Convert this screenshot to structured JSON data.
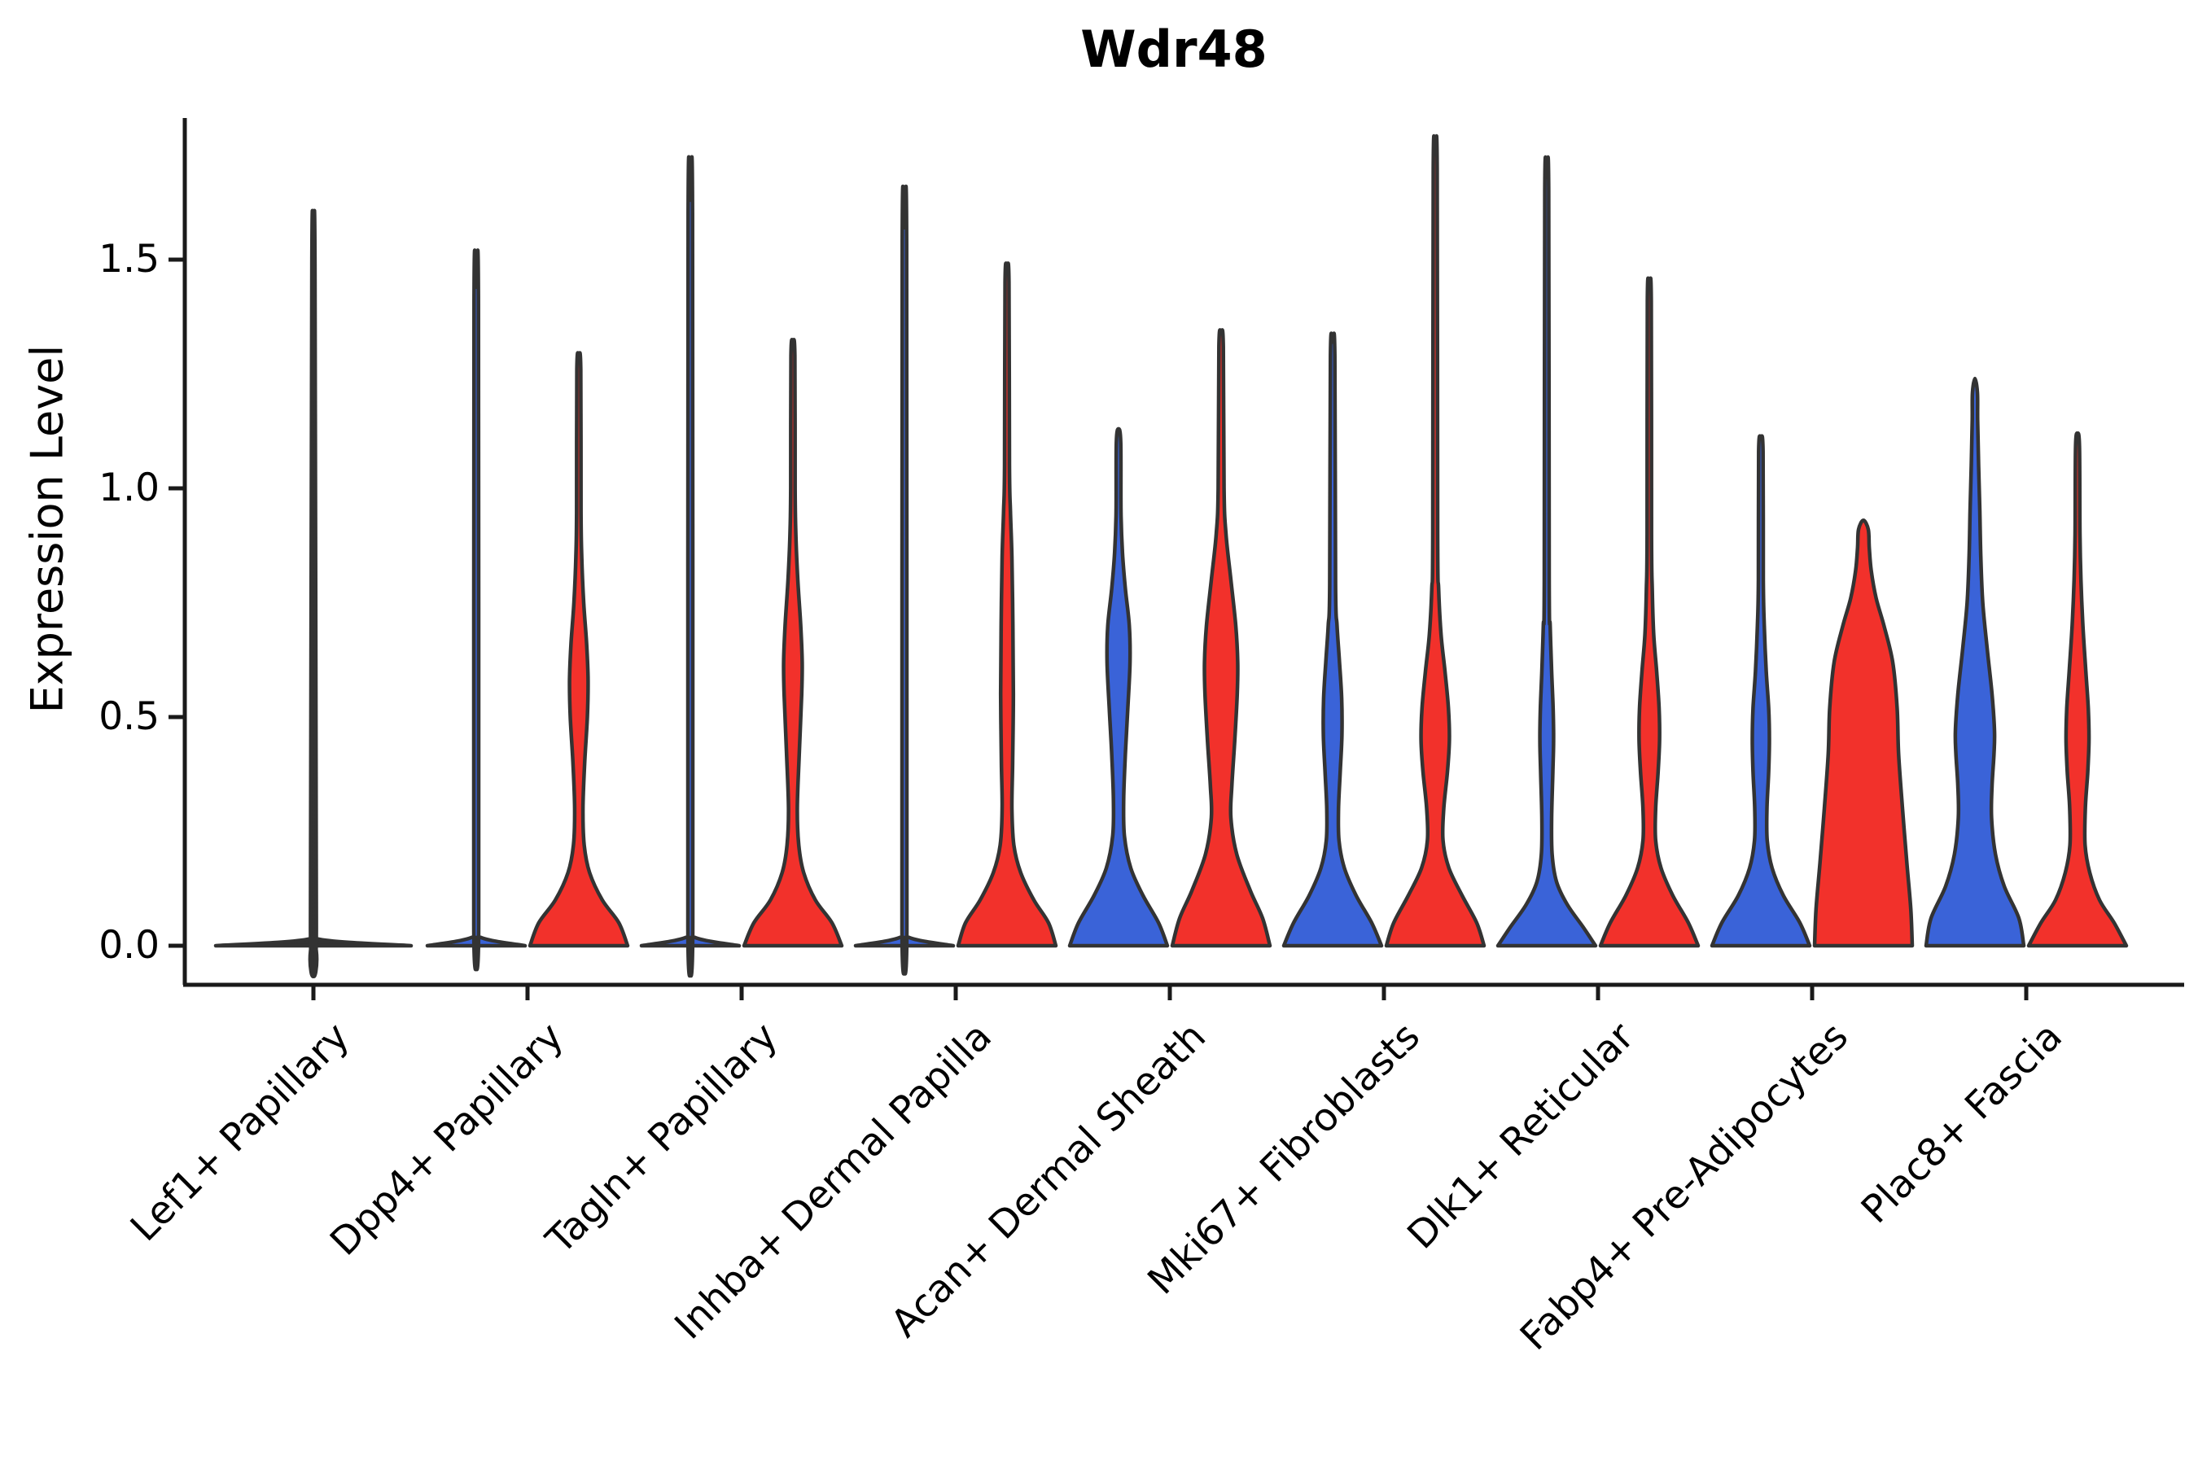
{
  "title": "Wdr48",
  "axes": {
    "y_label": "Expression Level",
    "y_tick_labels": [
      "0.0",
      "0.5",
      "1.0",
      "1.5"
    ]
  },
  "chart_data": {
    "type": "violin",
    "title": "Wdr48",
    "xlabel": "",
    "ylabel": "Expression Level",
    "ylim": [
      -0.05,
      1.81
    ],
    "yticks": [
      0.0,
      0.5,
      1.0,
      1.5
    ],
    "grid": false,
    "legend": "none",
    "colors": {
      "blue": "#3A63D8",
      "red": "#F2312B",
      "outline": "#333333"
    },
    "groups": [
      "group-blue",
      "group-red"
    ],
    "categories": [
      "Lef1+ Papillary",
      "Dpp4+ Papillary",
      "Tagln+ Papillary",
      "Inhba+ Dermal Papilla",
      "Acan+ Dermal Sheath",
      "Mki67+ Fibroblasts",
      "Dlk1+ Reticular",
      "Fabp4+ Pre-Adipocytes",
      "Plac8+ Fascia"
    ],
    "violins": [
      {
        "category": "Lef1+ Papillary",
        "group": "single",
        "color_key": "outline",
        "span": "full",
        "max_expression": 1.52,
        "profile": [
          [
            0,
            1
          ],
          [
            0.015,
            0.04
          ],
          [
            0.05,
            0.03
          ],
          [
            1.49,
            0.016
          ],
          [
            1.52,
            0
          ]
        ]
      },
      {
        "category": "Dpp4+ Papillary",
        "group": "group-blue",
        "color_key": "blue",
        "span": "half",
        "max_expression": 1.44,
        "profile": [
          [
            0,
            1
          ],
          [
            0.02,
            0.06
          ],
          [
            0.06,
            0.05
          ],
          [
            1.41,
            0.045
          ],
          [
            1.44,
            0
          ]
        ]
      },
      {
        "category": "Dpp4+ Papillary",
        "group": "group-red",
        "color_key": "red",
        "span": "half",
        "max_expression": 1.29,
        "profile": [
          [
            0,
            1
          ],
          [
            0.05,
            0.82
          ],
          [
            0.1,
            0.48
          ],
          [
            0.16,
            0.22
          ],
          [
            0.22,
            0.11
          ],
          [
            0.3,
            0.085
          ],
          [
            0.4,
            0.12
          ],
          [
            0.5,
            0.175
          ],
          [
            0.58,
            0.19
          ],
          [
            0.66,
            0.16
          ],
          [
            0.75,
            0.1
          ],
          [
            0.85,
            0.06
          ],
          [
            0.95,
            0.045
          ],
          [
            1.26,
            0.04
          ],
          [
            1.29,
            0
          ]
        ]
      },
      {
        "category": "Tagln+ Papillary",
        "group": "group-blue",
        "color_key": "blue",
        "span": "half",
        "max_expression": 1.63,
        "profile": [
          [
            0,
            1
          ],
          [
            0.02,
            0.06
          ],
          [
            0.06,
            0.05
          ],
          [
            1.6,
            0.045
          ],
          [
            1.63,
            0
          ]
        ]
      },
      {
        "category": "Tagln+ Papillary",
        "group": "group-red",
        "color_key": "red",
        "span": "half",
        "max_expression": 1.32,
        "profile": [
          [
            0,
            1
          ],
          [
            0.05,
            0.8
          ],
          [
            0.1,
            0.46
          ],
          [
            0.16,
            0.22
          ],
          [
            0.22,
            0.12
          ],
          [
            0.3,
            0.09
          ],
          [
            0.42,
            0.13
          ],
          [
            0.55,
            0.18
          ],
          [
            0.62,
            0.19
          ],
          [
            0.7,
            0.16
          ],
          [
            0.8,
            0.1
          ],
          [
            0.9,
            0.06
          ],
          [
            1.0,
            0.045
          ],
          [
            1.29,
            0.04
          ],
          [
            1.32,
            0
          ]
        ]
      },
      {
        "category": "Inhba+ Dermal Papilla",
        "group": "group-blue",
        "color_key": "blue",
        "span": "half",
        "max_expression": 1.57,
        "profile": [
          [
            0,
            1
          ],
          [
            0.02,
            0.06
          ],
          [
            0.06,
            0.05
          ],
          [
            1.54,
            0.045
          ],
          [
            1.57,
            0
          ]
        ]
      },
      {
        "category": "Inhba+ Dermal Papilla",
        "group": "group-red",
        "color_key": "red",
        "span": "half",
        "max_expression": 1.48,
        "profile": [
          [
            0,
            1
          ],
          [
            0.05,
            0.85
          ],
          [
            0.1,
            0.55
          ],
          [
            0.16,
            0.28
          ],
          [
            0.22,
            0.14
          ],
          [
            0.3,
            0.1
          ],
          [
            0.4,
            0.115
          ],
          [
            0.55,
            0.13
          ],
          [
            0.7,
            0.12
          ],
          [
            0.85,
            0.1
          ],
          [
            0.95,
            0.07
          ],
          [
            1.05,
            0.05
          ],
          [
            1.45,
            0.04
          ],
          [
            1.48,
            0
          ]
        ]
      },
      {
        "category": "Acan+ Dermal Sheath",
        "group": "group-blue",
        "color_key": "blue",
        "span": "half",
        "max_expression": 1.13,
        "profile": [
          [
            0,
            1
          ],
          [
            0.05,
            0.82
          ],
          [
            0.11,
            0.5
          ],
          [
            0.17,
            0.25
          ],
          [
            0.24,
            0.12
          ],
          [
            0.32,
            0.105
          ],
          [
            0.42,
            0.14
          ],
          [
            0.52,
            0.19
          ],
          [
            0.62,
            0.235
          ],
          [
            0.7,
            0.22
          ],
          [
            0.78,
            0.14
          ],
          [
            0.86,
            0.08
          ],
          [
            0.95,
            0.05
          ],
          [
            1.1,
            0.045
          ],
          [
            1.13,
            0
          ]
        ]
      },
      {
        "category": "Acan+ Dermal Sheath",
        "group": "group-red",
        "color_key": "red",
        "span": "half",
        "max_expression": 1.34,
        "profile": [
          [
            0,
            1
          ],
          [
            0.06,
            0.85
          ],
          [
            0.12,
            0.6
          ],
          [
            0.2,
            0.32
          ],
          [
            0.28,
            0.2
          ],
          [
            0.35,
            0.22
          ],
          [
            0.45,
            0.28
          ],
          [
            0.55,
            0.33
          ],
          [
            0.62,
            0.34
          ],
          [
            0.7,
            0.3
          ],
          [
            0.8,
            0.2
          ],
          [
            0.9,
            0.1
          ],
          [
            1.0,
            0.06
          ],
          [
            1.31,
            0.045
          ],
          [
            1.34,
            0
          ]
        ]
      },
      {
        "category": "Mki67+ Fibroblasts",
        "group": "group-blue",
        "color_key": "blue",
        "span": "half",
        "max_expression": 1.32,
        "profile": [
          [
            0,
            1
          ],
          [
            0.05,
            0.8
          ],
          [
            0.11,
            0.48
          ],
          [
            0.17,
            0.24
          ],
          [
            0.23,
            0.13
          ],
          [
            0.3,
            0.12
          ],
          [
            0.38,
            0.155
          ],
          [
            0.46,
            0.19
          ],
          [
            0.54,
            0.185
          ],
          [
            0.62,
            0.14
          ],
          [
            0.7,
            0.09
          ],
          [
            0.79,
            0.06
          ],
          [
            1.29,
            0.045
          ],
          [
            1.32,
            0
          ]
        ]
      },
      {
        "category": "Mki67+ Fibroblasts",
        "group": "group-red",
        "color_key": "red",
        "span": "half",
        "max_expression": 1.73,
        "profile": [
          [
            0,
            1
          ],
          [
            0.05,
            0.85
          ],
          [
            0.11,
            0.55
          ],
          [
            0.17,
            0.28
          ],
          [
            0.23,
            0.16
          ],
          [
            0.3,
            0.175
          ],
          [
            0.38,
            0.25
          ],
          [
            0.45,
            0.29
          ],
          [
            0.52,
            0.27
          ],
          [
            0.6,
            0.2
          ],
          [
            0.68,
            0.12
          ],
          [
            0.78,
            0.07
          ],
          [
            0.9,
            0.05
          ],
          [
            1.7,
            0.04
          ],
          [
            1.73,
            0
          ]
        ]
      },
      {
        "category": "Dlk1+ Reticular",
        "group": "group-blue",
        "color_key": "blue",
        "span": "half",
        "max_expression": 1.68,
        "profile": [
          [
            0,
            1
          ],
          [
            0.04,
            0.75
          ],
          [
            0.09,
            0.42
          ],
          [
            0.14,
            0.2
          ],
          [
            0.2,
            0.11
          ],
          [
            0.28,
            0.1
          ],
          [
            0.38,
            0.125
          ],
          [
            0.45,
            0.14
          ],
          [
            0.52,
            0.13
          ],
          [
            0.6,
            0.1
          ],
          [
            0.7,
            0.07
          ],
          [
            0.8,
            0.05
          ],
          [
            1.65,
            0.04
          ],
          [
            1.68,
            0
          ]
        ]
      },
      {
        "category": "Dlk1+ Reticular",
        "group": "group-red",
        "color_key": "red",
        "span": "half",
        "max_expression": 1.44,
        "profile": [
          [
            0,
            1
          ],
          [
            0.05,
            0.8
          ],
          [
            0.11,
            0.48
          ],
          [
            0.17,
            0.24
          ],
          [
            0.23,
            0.13
          ],
          [
            0.3,
            0.13
          ],
          [
            0.38,
            0.18
          ],
          [
            0.45,
            0.21
          ],
          [
            0.52,
            0.2
          ],
          [
            0.6,
            0.15
          ],
          [
            0.68,
            0.09
          ],
          [
            0.78,
            0.06
          ],
          [
            0.9,
            0.045
          ],
          [
            1.41,
            0.04
          ],
          [
            1.44,
            0
          ]
        ]
      },
      {
        "category": "Fabp4+ Pre-Adipocytes",
        "group": "group-blue",
        "color_key": "blue",
        "span": "half",
        "max_expression": 1.11,
        "profile": [
          [
            0,
            1
          ],
          [
            0.05,
            0.8
          ],
          [
            0.11,
            0.46
          ],
          [
            0.17,
            0.23
          ],
          [
            0.23,
            0.13
          ],
          [
            0.3,
            0.125
          ],
          [
            0.38,
            0.16
          ],
          [
            0.45,
            0.175
          ],
          [
            0.52,
            0.16
          ],
          [
            0.6,
            0.11
          ],
          [
            0.7,
            0.07
          ],
          [
            0.8,
            0.05
          ],
          [
            1.08,
            0.045
          ],
          [
            1.11,
            0
          ]
        ]
      },
      {
        "category": "Fabp4+ Pre-Adipocytes",
        "group": "group-red",
        "color_key": "red",
        "span": "half",
        "max_expression": 0.93,
        "profile": [
          [
            0,
            1
          ],
          [
            0.08,
            0.97
          ],
          [
            0.18,
            0.89
          ],
          [
            0.3,
            0.8
          ],
          [
            0.42,
            0.72
          ],
          [
            0.52,
            0.69
          ],
          [
            0.62,
            0.6
          ],
          [
            0.7,
            0.42
          ],
          [
            0.76,
            0.26
          ],
          [
            0.82,
            0.16
          ],
          [
            0.87,
            0.12
          ],
          [
            0.91,
            0.1
          ],
          [
            0.93,
            0
          ]
        ]
      },
      {
        "category": "Plac8+ Fascia",
        "group": "group-blue",
        "color_key": "blue",
        "span": "half",
        "max_expression": 1.24,
        "profile": [
          [
            0,
            1
          ],
          [
            0.06,
            0.9
          ],
          [
            0.13,
            0.6
          ],
          [
            0.2,
            0.42
          ],
          [
            0.28,
            0.34
          ],
          [
            0.35,
            0.35
          ],
          [
            0.42,
            0.39
          ],
          [
            0.47,
            0.4
          ],
          [
            0.55,
            0.35
          ],
          [
            0.65,
            0.25
          ],
          [
            0.75,
            0.16
          ],
          [
            0.85,
            0.12
          ],
          [
            0.95,
            0.1
          ],
          [
            1.05,
            0.075
          ],
          [
            1.15,
            0.055
          ],
          [
            1.21,
            0.05
          ],
          [
            1.24,
            0
          ]
        ]
      },
      {
        "category": "Plac8+ Fascia",
        "group": "group-red",
        "color_key": "red",
        "span": "half",
        "max_expression": 1.12,
        "profile": [
          [
            0,
            1
          ],
          [
            0.05,
            0.75
          ],
          [
            0.1,
            0.45
          ],
          [
            0.16,
            0.25
          ],
          [
            0.22,
            0.155
          ],
          [
            0.3,
            0.16
          ],
          [
            0.38,
            0.21
          ],
          [
            0.45,
            0.235
          ],
          [
            0.52,
            0.22
          ],
          [
            0.6,
            0.17
          ],
          [
            0.7,
            0.11
          ],
          [
            0.8,
            0.07
          ],
          [
            0.9,
            0.05
          ],
          [
            1.09,
            0.04
          ],
          [
            1.12,
            0
          ]
        ]
      }
    ]
  }
}
